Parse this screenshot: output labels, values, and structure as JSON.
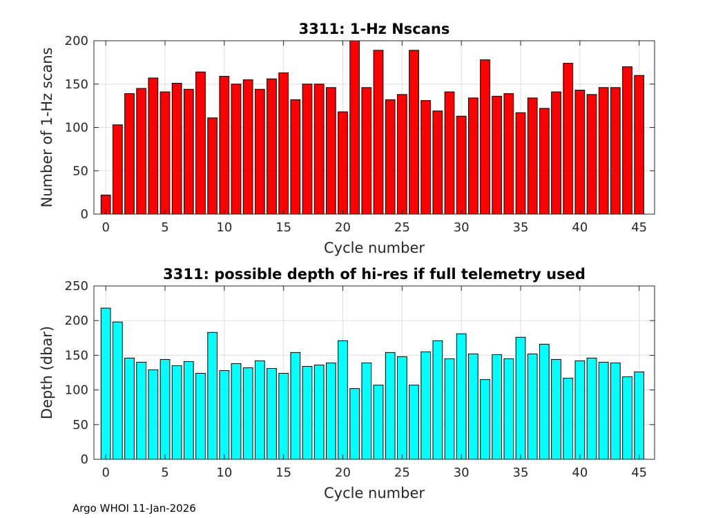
{
  "footer": "Argo WHOI 11-Jan-2026",
  "chart_data": [
    {
      "type": "bar",
      "title": "3311: 1-Hz Nscans",
      "xlabel": "Cycle number",
      "ylabel": "Number of 1-Hz scans",
      "x": [
        0,
        1,
        2,
        3,
        4,
        5,
        6,
        7,
        8,
        9,
        10,
        11,
        12,
        13,
        14,
        15,
        16,
        17,
        18,
        19,
        20,
        21,
        22,
        23,
        24,
        25,
        26,
        27,
        28,
        29,
        30,
        31,
        32,
        33,
        34,
        35,
        36,
        37,
        38,
        39,
        40,
        41,
        42,
        43,
        44,
        45
      ],
      "values": [
        22,
        103,
        139,
        145,
        157,
        141,
        151,
        144,
        164,
        111,
        159,
        150,
        155,
        144,
        156,
        163,
        132,
        150,
        150,
        146,
        118,
        200,
        146,
        189,
        132,
        138,
        189,
        131,
        119,
        141,
        113,
        134,
        178,
        136,
        139,
        117,
        134,
        122,
        141,
        174,
        143,
        138,
        146,
        146,
        170,
        160
      ],
      "xlim": [
        -1,
        46.3
      ],
      "ylim": [
        0,
        200
      ],
      "xticks": [
        0,
        5,
        10,
        15,
        20,
        25,
        30,
        35,
        40,
        45
      ],
      "yticks": [
        0,
        50,
        100,
        150,
        200
      ],
      "grid": true,
      "bar_color": "#ff0000"
    },
    {
      "type": "bar",
      "title": "3311: possible depth of hi-res if full telemetry used",
      "xlabel": "Cycle number",
      "ylabel": "Depth (dbar)",
      "x": [
        0,
        1,
        2,
        3,
        4,
        5,
        6,
        7,
        8,
        9,
        10,
        11,
        12,
        13,
        14,
        15,
        16,
        17,
        18,
        19,
        20,
        21,
        22,
        23,
        24,
        25,
        26,
        27,
        28,
        29,
        30,
        31,
        32,
        33,
        34,
        35,
        36,
        37,
        38,
        39,
        40,
        41,
        42,
        43,
        44,
        45
      ],
      "values": [
        218,
        198,
        146,
        140,
        129,
        144,
        135,
        141,
        124,
        183,
        128,
        138,
        132,
        142,
        131,
        124,
        154,
        134,
        136,
        139,
        171,
        102,
        139,
        107,
        154,
        148,
        107,
        155,
        171,
        145,
        181,
        152,
        115,
        151,
        145,
        176,
        152,
        166,
        144,
        117,
        142,
        146,
        140,
        139,
        119,
        126
      ],
      "xlim": [
        -1,
        46.3
      ],
      "ylim": [
        0,
        250
      ],
      "xticks": [
        0,
        5,
        10,
        15,
        20,
        25,
        30,
        35,
        40,
        45
      ],
      "yticks": [
        0,
        50,
        100,
        150,
        200,
        250
      ],
      "grid": true,
      "bar_color": "#00ffff"
    }
  ]
}
